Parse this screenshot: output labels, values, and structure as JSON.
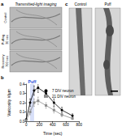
{
  "panel_a": {
    "letter": "a",
    "title": "Transmitted-light imaging",
    "rows": [
      {
        "label": "Control"
      },
      {
        "label": "Puffing",
        "time": "30 sec"
      },
      {
        "label": "Recovery",
        "time": "700 sec"
      }
    ]
  },
  "panel_b": {
    "letter": "b"
  },
  "panel_c": {
    "letter": "c",
    "columns": [
      "Control",
      "Puff"
    ]
  },
  "chart_data": {
    "type": "line",
    "xlabel": "Time (sec)",
    "ylabel": "Varicosity #/µm",
    "xlim": [
      0,
      800
    ],
    "xticks": [
      0,
      200,
      400,
      600,
      800
    ],
    "ylim": [
      0,
      0.4
    ],
    "yticks": [
      {
        "value": 0,
        "label": "0.0"
      },
      {
        "value": 0.1,
        "label": "0.1"
      },
      {
        "value": 0.2,
        "label": "0.2"
      },
      {
        "value": 0.3,
        "label": "0.3"
      },
      {
        "value": 0.4,
        "label": "0.4"
      }
    ],
    "annotation": {
      "text": "Puff",
      "color": "#1f4fd8",
      "x": [
        60,
        120
      ]
    },
    "legend": "upper right",
    "series": [
      {
        "name": "7 DIV neuron",
        "color": "#000000",
        "marker": "circle",
        "x": [
          0,
          60,
          120,
          180,
          300,
          420,
          540,
          700
        ],
        "values": [
          0.02,
          0.2,
          0.33,
          0.36,
          0.3,
          0.2,
          0.12,
          0.06
        ],
        "errors": [
          0.01,
          0.04,
          0.05,
          0.05,
          0.04,
          0.04,
          0.03,
          0.02
        ]
      },
      {
        "name": "21 DIV neuron",
        "color": "#8c8c8c",
        "marker": "square",
        "x": [
          0,
          60,
          120,
          180,
          300,
          420,
          540,
          700
        ],
        "values": [
          0.01,
          0.1,
          0.2,
          0.22,
          0.17,
          0.12,
          0.07,
          0.03
        ],
        "errors": [
          0.01,
          0.03,
          0.04,
          0.04,
          0.03,
          0.03,
          0.02,
          0.01
        ]
      }
    ]
  }
}
